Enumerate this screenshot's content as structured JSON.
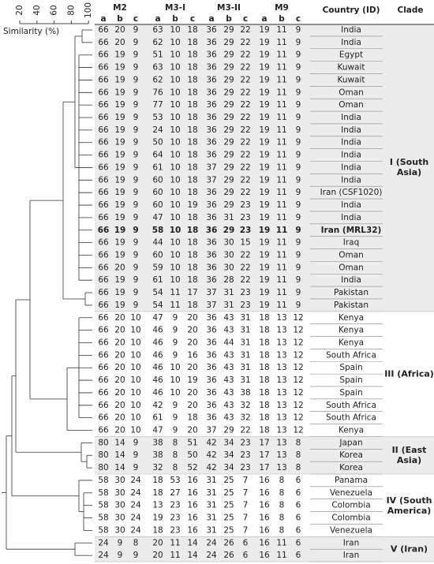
{
  "axis": {
    "ticks": [
      20,
      40,
      60,
      80,
      100
    ],
    "label": "Similarity (%)"
  },
  "header": {
    "groups": [
      "M2",
      "M3-I",
      "M3-II",
      "M9"
    ],
    "subcolumns": [
      "a",
      "b",
      "c"
    ],
    "country": "Country (ID)",
    "clade": "Clade"
  },
  "clades": [
    {
      "name": "I (South Asia)",
      "rows": [
        {
          "values": [
            66,
            20,
            9,
            63,
            10,
            18,
            36,
            29,
            22,
            19,
            11,
            9
          ],
          "country": "India"
        },
        {
          "values": [
            66,
            20,
            9,
            62,
            10,
            18,
            36,
            29,
            22,
            19,
            11,
            9
          ],
          "country": "India"
        },
        {
          "values": [
            66,
            19,
            9,
            51,
            10,
            18,
            36,
            29,
            22,
            19,
            11,
            9
          ],
          "country": "Egypt"
        },
        {
          "values": [
            66,
            19,
            9,
            63,
            10,
            18,
            36,
            29,
            22,
            19,
            11,
            9
          ],
          "country": "Kuwait"
        },
        {
          "values": [
            66,
            19,
            9,
            62,
            10,
            18,
            36,
            29,
            22,
            19,
            11,
            9
          ],
          "country": "Kuwait"
        },
        {
          "values": [
            66,
            19,
            9,
            76,
            10,
            18,
            36,
            29,
            22,
            19,
            11,
            9
          ],
          "country": "Oman"
        },
        {
          "values": [
            66,
            19,
            9,
            77,
            10,
            18,
            36,
            29,
            22,
            19,
            11,
            9
          ],
          "country": "Oman"
        },
        {
          "values": [
            66,
            19,
            9,
            53,
            10,
            18,
            36,
            29,
            22,
            19,
            11,
            9
          ],
          "country": "India"
        },
        {
          "values": [
            66,
            19,
            9,
            24,
            10,
            18,
            36,
            29,
            22,
            19,
            11,
            9
          ],
          "country": "India"
        },
        {
          "values": [
            66,
            19,
            9,
            50,
            10,
            18,
            36,
            29,
            22,
            19,
            11,
            9
          ],
          "country": "India"
        },
        {
          "values": [
            66,
            19,
            9,
            64,
            10,
            18,
            36,
            29,
            22,
            19,
            11,
            9
          ],
          "country": "India"
        },
        {
          "values": [
            66,
            19,
            9,
            61,
            10,
            18,
            37,
            29,
            22,
            19,
            11,
            9
          ],
          "country": "India"
        },
        {
          "values": [
            66,
            19,
            9,
            60,
            10,
            18,
            37,
            29,
            22,
            19,
            11,
            9
          ],
          "country": "India"
        },
        {
          "values": [
            66,
            19,
            9,
            60,
            10,
            18,
            36,
            29,
            22,
            19,
            11,
            9
          ],
          "country": "Iran (CSF1020)"
        },
        {
          "values": [
            66,
            19,
            9,
            60,
            10,
            19,
            36,
            29,
            23,
            19,
            11,
            9
          ],
          "country": "India"
        },
        {
          "values": [
            66,
            19,
            9,
            47,
            10,
            18,
            36,
            31,
            23,
            19,
            11,
            9
          ],
          "country": "India"
        },
        {
          "values": [
            66,
            19,
            9,
            58,
            10,
            18,
            36,
            29,
            23,
            19,
            11,
            9
          ],
          "country": "Iran (MRL32)",
          "bold": true
        },
        {
          "values": [
            66,
            19,
            9,
            44,
            10,
            18,
            36,
            30,
            15,
            19,
            11,
            9
          ],
          "country": "Iraq"
        },
        {
          "values": [
            66,
            19,
            9,
            60,
            10,
            18,
            36,
            30,
            22,
            19,
            11,
            9
          ],
          "country": "Oman"
        },
        {
          "values": [
            66,
            20,
            9,
            59,
            10,
            18,
            36,
            30,
            22,
            19,
            11,
            9
          ],
          "country": "Oman"
        },
        {
          "values": [
            66,
            19,
            9,
            61,
            10,
            18,
            36,
            28,
            22,
            19,
            11,
            9
          ],
          "country": "India"
        },
        {
          "values": [
            66,
            19,
            9,
            54,
            11,
            17,
            37,
            31,
            23,
            19,
            11,
            9
          ],
          "country": "Pakistan"
        },
        {
          "values": [
            66,
            19,
            9,
            54,
            11,
            18,
            37,
            31,
            23,
            19,
            11,
            9
          ],
          "country": "Pakistan"
        }
      ]
    },
    {
      "name": "III (Africa)",
      "rows": [
        {
          "values": [
            66,
            20,
            10,
            47,
            9,
            20,
            36,
            43,
            31,
            18,
            13,
            12
          ],
          "country": "Kenya"
        },
        {
          "values": [
            66,
            20,
            10,
            46,
            9,
            20,
            36,
            43,
            31,
            18,
            13,
            12
          ],
          "country": "Kenya"
        },
        {
          "values": [
            66,
            20,
            10,
            46,
            9,
            20,
            36,
            44,
            31,
            18,
            13,
            12
          ],
          "country": "Kenya"
        },
        {
          "values": [
            66,
            20,
            10,
            46,
            9,
            16,
            36,
            43,
            31,
            18,
            13,
            12
          ],
          "country": "South Africa"
        },
        {
          "values": [
            66,
            20,
            10,
            46,
            10,
            20,
            36,
            43,
            31,
            18,
            13,
            12
          ],
          "country": "Spain"
        },
        {
          "values": [
            66,
            20,
            10,
            46,
            10,
            19,
            36,
            43,
            31,
            18,
            13,
            12
          ],
          "country": "Spain"
        },
        {
          "values": [
            66,
            20,
            10,
            46,
            10,
            20,
            36,
            43,
            38,
            18,
            13,
            12
          ],
          "country": "Spain"
        },
        {
          "values": [
            66,
            20,
            10,
            42,
            9,
            20,
            36,
            43,
            32,
            18,
            13,
            12
          ],
          "country": "South Africa"
        },
        {
          "values": [
            66,
            20,
            10,
            61,
            9,
            18,
            36,
            43,
            32,
            18,
            13,
            12
          ],
          "country": "South Africa"
        },
        {
          "values": [
            66,
            20,
            10,
            47,
            9,
            20,
            37,
            29,
            22,
            18,
            13,
            12
          ],
          "country": "Kenya"
        }
      ]
    },
    {
      "name": "II (East Asia)",
      "rows": [
        {
          "values": [
            80,
            14,
            9,
            38,
            8,
            51,
            42,
            34,
            23,
            17,
            13,
            8
          ],
          "country": "Japan"
        },
        {
          "values": [
            80,
            14,
            9,
            38,
            8,
            50,
            42,
            34,
            23,
            17,
            13,
            8
          ],
          "country": "Korea"
        },
        {
          "values": [
            80,
            14,
            9,
            32,
            8,
            52,
            42,
            34,
            23,
            17,
            13,
            8
          ],
          "country": "Korea"
        }
      ]
    },
    {
      "name": "IV (South America)",
      "rows": [
        {
          "values": [
            58,
            30,
            24,
            18,
            53,
            16,
            31,
            25,
            7,
            16,
            8,
            6
          ],
          "country": "Panama"
        },
        {
          "values": [
            58,
            30,
            24,
            18,
            27,
            16,
            31,
            25,
            7,
            16,
            8,
            6
          ],
          "country": "Venezuela"
        },
        {
          "values": [
            58,
            30,
            24,
            13,
            23,
            16,
            31,
            25,
            7,
            16,
            8,
            6
          ],
          "country": "Colombia"
        },
        {
          "values": [
            58,
            30,
            24,
            19,
            23,
            16,
            31,
            25,
            7,
            16,
            8,
            6
          ],
          "country": "Colombia"
        },
        {
          "values": [
            58,
            30,
            24,
            18,
            23,
            16,
            31,
            25,
            7,
            16,
            8,
            6
          ],
          "country": "Venezuela"
        }
      ]
    },
    {
      "name": "V (Iran)",
      "rows": [
        {
          "values": [
            24,
            9,
            8,
            20,
            11,
            14,
            24,
            26,
            6,
            16,
            11,
            6
          ],
          "country": "Iran"
        },
        {
          "values": [
            24,
            9,
            9,
            20,
            11,
            14,
            24,
            26,
            6,
            16,
            11,
            6
          ],
          "country": "Iran"
        }
      ]
    }
  ]
}
